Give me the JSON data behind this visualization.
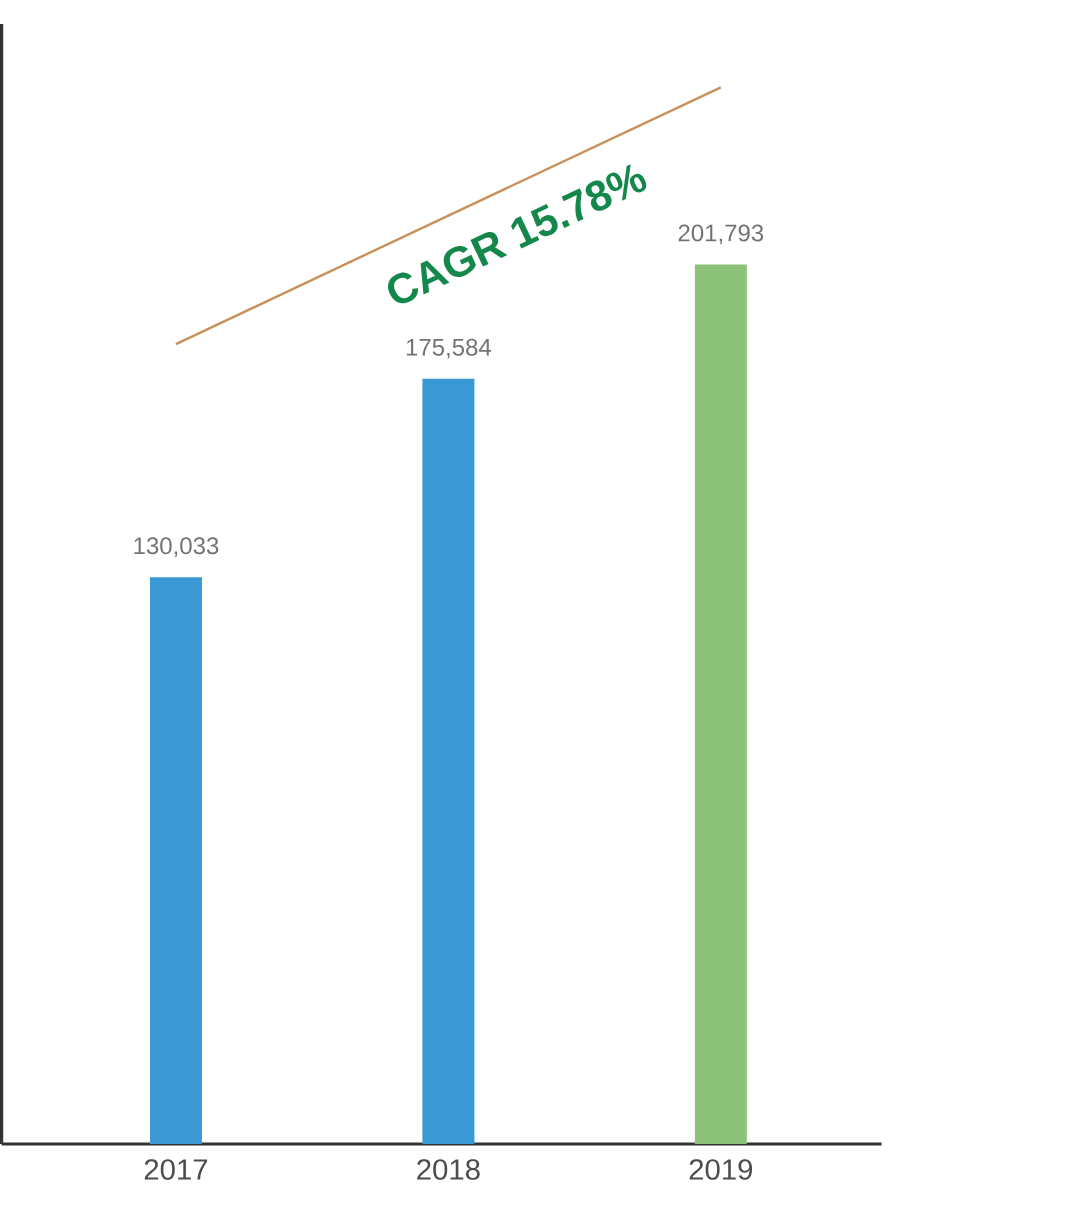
{
  "chart_data": {
    "type": "bar",
    "categories": [
      "2017",
      "2018",
      "2019"
    ],
    "series": [
      {
        "values": [
          130033,
          175584,
          201793
        ],
        "value_labels": [
          "130,033",
          "175,584",
          "201,793"
        ],
        "colors": [
          "#3a98d4",
          "#3a98d4",
          "#8dc27a"
        ]
      },
      {
        "type": "line",
        "values": [
          183500,
          213000,
          242400
        ],
        "color": "#c8915a"
      }
    ],
    "annotations": [
      "CAGR 15.78%"
    ]
  }
}
